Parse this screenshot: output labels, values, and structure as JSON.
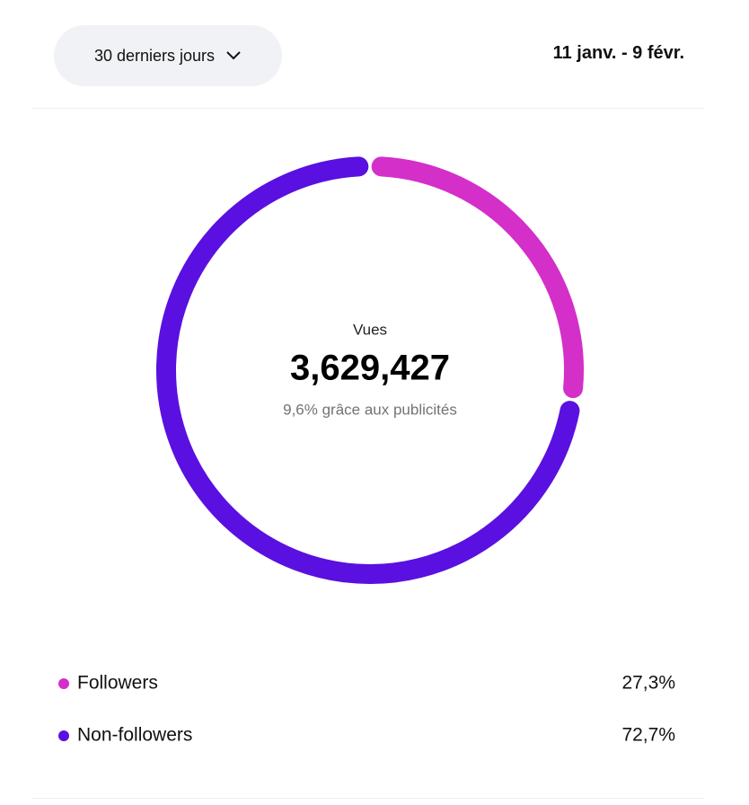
{
  "filter": "30 derniers jours",
  "date_range": "11 janv. - 9 févr.",
  "chart_data": {
    "type": "donut",
    "center_label": "Vues",
    "center_value": "3,629,427",
    "center_note": "9,6% grâce aux publicités",
    "categories": [
      "Followers",
      "Non-followers"
    ],
    "values": [
      27.3,
      72.7
    ],
    "value_labels": [
      "27,3%",
      "72,7%"
    ],
    "colors": [
      "#d42fc9",
      "#5a10e0"
    ]
  }
}
